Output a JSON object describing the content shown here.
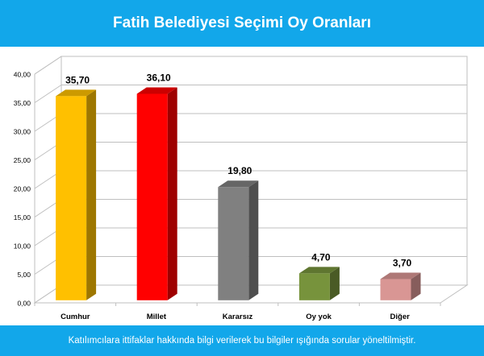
{
  "title": "Fatih Belediyesi Seçimi Oy Oranları",
  "footer_note": "Katılımcılara ittifaklar hakkında bilgi verilerek bu bilgiler ışığında sorular yöneltilmiştir.",
  "colors": {
    "header_bg": "#12a7ea",
    "bars": [
      "#ffc000",
      "#ff0000",
      "#808080",
      "#77933c",
      "#d99694"
    ]
  },
  "chart_data": {
    "type": "bar",
    "categories": [
      "Cumhur",
      "Millet",
      "Kararsız",
      "Oy yok",
      "Diğer"
    ],
    "values": [
      35.7,
      36.1,
      19.8,
      4.7,
      3.7
    ],
    "value_labels": [
      "35,70",
      "36,10",
      "19,80",
      "4,70",
      "3,70"
    ],
    "yticks": [
      "0,00",
      "5,00",
      "10,00",
      "15,00",
      "20,00",
      "25,00",
      "30,00",
      "35,00",
      "40,00"
    ],
    "ylim": [
      0,
      40
    ],
    "grid": true,
    "style": "3d-column"
  }
}
